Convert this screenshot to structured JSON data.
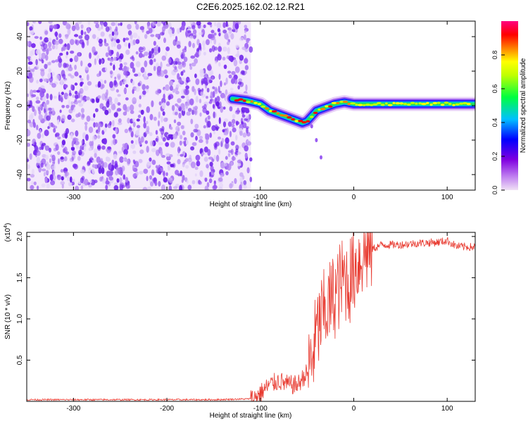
{
  "page": {
    "title": "C2E6.2025.162.02.12.R21"
  },
  "chart_data": [
    {
      "type": "heatmap",
      "xlabel": "Height of straight line (km)",
      "ylabel": "Frequency (Hz)",
      "xlim": [
        -350,
        130
      ],
      "ylim": [
        -49,
        49
      ],
      "xticks": [
        -300,
        -200,
        -100,
        0,
        100
      ],
      "xtick_labels": [
        "-300",
        "-200",
        "-100",
        "0",
        "100"
      ],
      "yticks": [
        -40,
        -20,
        0,
        20,
        40
      ],
      "ytick_labels": [
        "-40",
        "-20",
        "0",
        "20",
        "40"
      ],
      "colorbar": {
        "label": "Normalized spectral amplitude",
        "range": [
          0,
          1
        ],
        "ticks": [
          0,
          0.2,
          0.4,
          0.6,
          0.8
        ],
        "tick_labels": [
          "0.0",
          "0.2",
          "0.4",
          "0.6",
          "0.8"
        ],
        "colors": [
          "#f0e0f5",
          "#8000e0",
          "#0000ff",
          "#00c0ff",
          "#00ff40",
          "#c0ff00",
          "#ffff00",
          "#ff8000",
          "#ff0000",
          "#ff0080"
        ]
      },
      "noise_region": {
        "x": [
          -350,
          -110
        ],
        "y": [
          -49,
          49
        ],
        "color": "#7b2ff0"
      },
      "ridge": {
        "x": [
          -130,
          -115,
          -100,
          -90,
          -80,
          -70,
          -60,
          -55,
          -50,
          -45,
          -40,
          -30,
          -20,
          -10,
          0,
          20,
          40,
          60,
          80,
          100,
          130
        ],
        "y": [
          4,
          3,
          1,
          -3,
          -5,
          -7,
          -9,
          -10,
          -9,
          -6,
          -3,
          -1,
          1,
          2,
          1,
          1,
          1,
          1,
          1,
          1,
          1
        ]
      },
      "tail": {
        "x": [
          -45,
          -40,
          -35
        ],
        "y": [
          -12,
          -20,
          -30
        ]
      }
    },
    {
      "type": "line",
      "xlabel": "Height of straight line (km)",
      "ylabel": "SNR (10 * v/v)",
      "yscale_label": "(x10",
      "yscale_exp": "4",
      "yscale_close": ")",
      "xlim": [
        -350,
        130
      ],
      "ylim": [
        0,
        2.05
      ],
      "xticks": [
        -300,
        -200,
        -100,
        0,
        100
      ],
      "xtick_labels": [
        "-300",
        "-200",
        "-100",
        "0",
        "100"
      ],
      "yticks": [
        0.5,
        1.0,
        1.5,
        2.0
      ],
      "ytick_labels": [
        "0.5",
        "1.0",
        "1.5",
        "2.0"
      ],
      "color": "#e83a30",
      "series": [
        {
          "x": [
            -350,
            -300,
            -250,
            -200,
            -150,
            -110,
            -100,
            -90,
            -80,
            -70,
            -60,
            -50,
            -45,
            -40,
            -35,
            -30,
            -25,
            -20,
            -15,
            -10,
            -5,
            0,
            10,
            20,
            30,
            50,
            70,
            90,
            100,
            110,
            130
          ],
          "y": [
            0.02,
            0.02,
            0.02,
            0.02,
            0.02,
            0.03,
            0.1,
            0.2,
            0.25,
            0.2,
            0.2,
            0.35,
            0.5,
            0.8,
            1.0,
            1.1,
            1.2,
            1.3,
            1.4,
            1.5,
            1.45,
            1.6,
            1.8,
            1.85,
            1.9,
            1.9,
            1.92,
            1.93,
            1.95,
            1.88,
            1.87
          ]
        }
      ]
    }
  ]
}
